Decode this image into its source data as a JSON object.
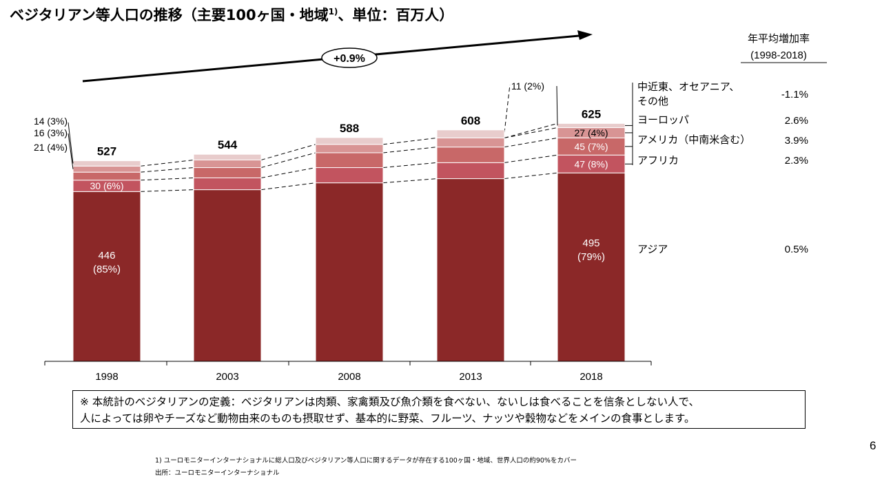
{
  "title": {
    "main": "ベジタリアン等人口の推移（主要100ヶ国・地域",
    "sup": "1)",
    "rest": "、単位：百万人）"
  },
  "growth_header": [
    "年平均増加率",
    "(1998-2018)"
  ],
  "overall_growth_label": "+0.9%",
  "chart_data": {
    "type": "bar",
    "stacked": true,
    "categories": [
      "1998",
      "2003",
      "2008",
      "2013",
      "2018"
    ],
    "totals": [
      527,
      544,
      588,
      608,
      625
    ],
    "series": [
      {
        "name": "アジア",
        "values": [
          446,
          451,
          469,
          480,
          495
        ],
        "growth": "0.5%",
        "color": "#8B2828"
      },
      {
        "name": "アフリカ",
        "values": [
          30,
          31,
          40,
          42,
          47
        ],
        "growth": "2.3%",
        "color": "#C2545F"
      },
      {
        "name": "アメリカ（中南米含む）",
        "values": [
          21,
          27,
          39,
          41,
          45
        ],
        "growth": "3.9%",
        "color": "#C86868"
      },
      {
        "name": "ヨーロッパ",
        "values": [
          16,
          20,
          22,
          24,
          27
        ],
        "growth": "2.6%",
        "color": "#D89494"
      },
      {
        "name": "中近東、オセアニア、その他",
        "values": [
          14,
          15,
          18,
          21,
          11
        ],
        "growth": "-1.1%",
        "color": "#E8CCCC"
      }
    ],
    "data_labels": {
      "1998": [
        "446\n(85%)",
        "30 (6%)",
        "21 (4%)",
        "16 (3%)",
        "14 (3%)"
      ],
      "2018": [
        "495\n(79%)",
        "47 (8%)",
        "45 (7%)",
        "27 (4%)",
        "11 (2%)"
      ]
    },
    "legend_placement": "right",
    "grid": false
  },
  "definition": [
    "※ 本統計のベジタリアンの定義：ベジタリアンは肉類、家禽類及び魚介類を食べない、ないしは食べることを信条としない人で、",
    "人によっては卵やチーズなど動物由来のものも摂取せず、基本的に野菜、フルーツ、ナッツや穀物などをメインの食事とします。"
  ],
  "page_number": "6",
  "footnotes": [
    "1) ユーロモニターインターナショナルに総人口及びベジタリアン等人口に関するデータが存在する100ヶ国・地域、世界人口の約90%をカバー",
    "出所：ユーロモニターインターナショナル"
  ]
}
